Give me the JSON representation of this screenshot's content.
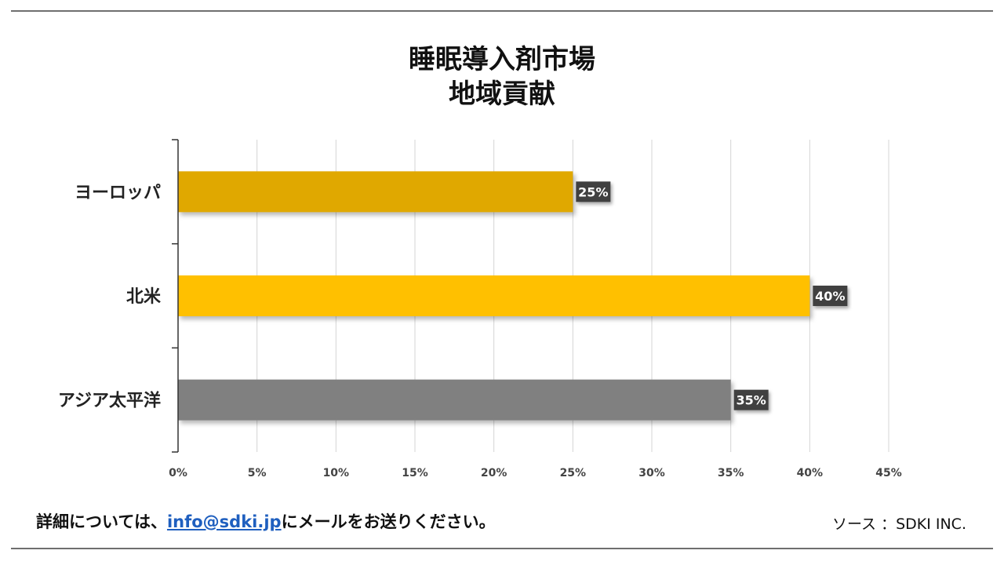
{
  "title": {
    "line1": "睡眠導入剤市場",
    "line2": "地域貢献"
  },
  "chart_data": {
    "type": "bar",
    "orientation": "horizontal",
    "categories": [
      "ヨーロッパ",
      "北米",
      "アジア太平洋"
    ],
    "values": [
      25,
      40,
      35
    ],
    "value_labels": [
      "25%",
      "40%",
      "35%"
    ],
    "bar_colors": [
      "#E0A800",
      "#FFC000",
      "#808080"
    ],
    "xlim": [
      0,
      45
    ],
    "xticks": [
      0,
      5,
      10,
      15,
      20,
      25,
      30,
      35,
      40,
      45
    ],
    "xtick_labels": [
      "0%",
      "5%",
      "10%",
      "15%",
      "20%",
      "25%",
      "30%",
      "35%",
      "40%",
      "45%"
    ],
    "grid": true,
    "legend": "none"
  },
  "footer": {
    "text_before": "詳細については、",
    "email": "info@sdki.jp",
    "text_after": "にメールをお送りください。",
    "source": "ソース ：SDKI INC."
  }
}
